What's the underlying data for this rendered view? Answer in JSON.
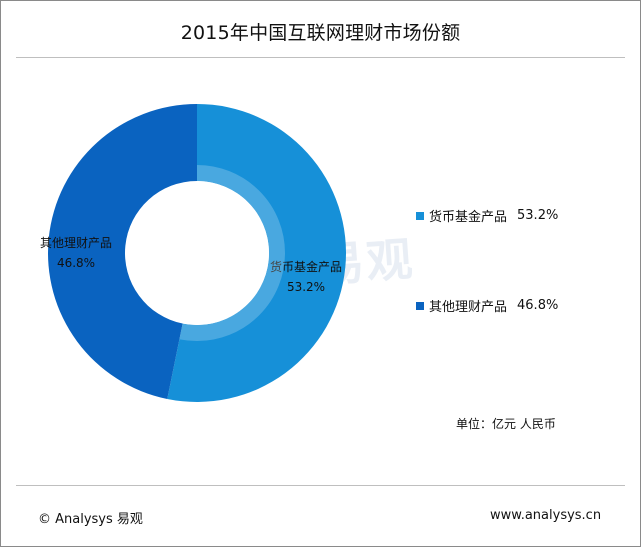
{
  "title": "2015年中国互联网理财市场份额",
  "unit_text": "单位：亿元 人民币",
  "copyright": "© Analysys 易观",
  "site": "www.analysys.cn",
  "watermark": "易观",
  "chart_data": {
    "type": "pie",
    "title": "2015年中国互联网理财市场份额",
    "unit": "亿元 人民币",
    "legend_position": "right",
    "series": [
      {
        "name": "货币基金产品",
        "value": 53.2,
        "label": "53.2%",
        "color": "#1690d8"
      },
      {
        "name": "其他理财产品",
        "value": 46.8,
        "label": "46.8%",
        "color": "#0a63c0"
      }
    ]
  }
}
